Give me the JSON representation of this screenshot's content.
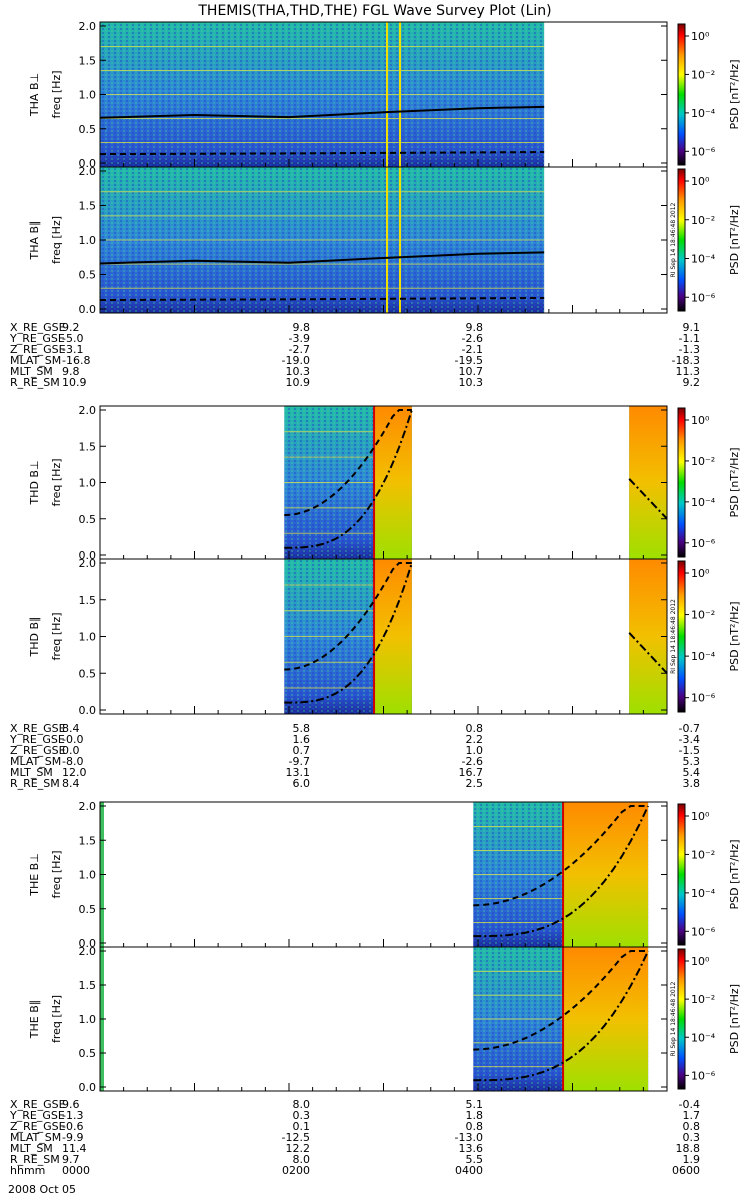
{
  "title": "THEMIS(THA,THD,THE) FGL Wave Survey Plot (Lin)",
  "colors": {
    "grid_line": "#000000",
    "cb_top": "#ff0000",
    "cb_mid": "#00dd00",
    "cb_low": "#0000ff",
    "cb_bottom": "#000000"
  },
  "chart_data": [
    {
      "type": "heatmap",
      "probe": "THA",
      "panels": [
        {
          "ylabel": "THA B⊥",
          "yunit": "freq [Hz]",
          "yticks": [
            "0.0",
            "0.5",
            "1.0",
            "1.5",
            "2.0"
          ],
          "ylim": [
            0,
            2
          ]
        },
        {
          "ylabel": "THA B∥",
          "yunit": "freq [Hz]",
          "yticks": [
            "0.0",
            "0.5",
            "1.0",
            "1.5",
            "2.0"
          ],
          "ylim": [
            0,
            2
          ]
        }
      ],
      "colorbar": {
        "label": "PSD [nT²/Hz]",
        "ticks": [
          "10⁰",
          "10⁻²",
          "10⁻⁴",
          "10⁻⁶"
        ]
      },
      "data_coverage_hours": [
        0,
        4.7
      ],
      "upper_curve": [
        [
          0,
          0.66
        ],
        [
          1,
          0.7
        ],
        [
          2,
          0.67
        ],
        [
          3,
          0.74
        ],
        [
          4,
          0.8
        ],
        [
          4.7,
          0.82
        ]
      ],
      "lower_curve": [
        [
          0,
          0.13
        ],
        [
          2,
          0.14
        ],
        [
          4.7,
          0.16
        ]
      ],
      "ephemeris": [
        {
          "label": "X_RE_GSE",
          "values": [
            "9.2",
            "9.8",
            "9.8",
            "9.1"
          ]
        },
        {
          "label": "Y_RE_GSE",
          "values": [
            "-5.0",
            "-3.9",
            "-2.6",
            "-1.1"
          ]
        },
        {
          "label": "Z_RE_GSE",
          "values": [
            "-3.1",
            "-2.7",
            "-2.1",
            "-1.3"
          ]
        },
        {
          "label": "MLAT_SM",
          "values": [
            "-16.8",
            "-19.0",
            "-19.5",
            "-18.3"
          ]
        },
        {
          "label": "MLT_SM",
          "values": [
            "9.8",
            "10.3",
            "10.7",
            "11.3"
          ]
        },
        {
          "label": "R_RE_SM",
          "values": [
            "10.9",
            "10.9",
            "10.3",
            "9.2"
          ]
        }
      ]
    },
    {
      "type": "heatmap",
      "probe": "THD",
      "panels": [
        {
          "ylabel": "THD B⊥",
          "yunit": "freq [Hz]",
          "yticks": [
            "0.0",
            "0.5",
            "1.0",
            "1.5",
            "2.0"
          ],
          "ylim": [
            0,
            2
          ]
        },
        {
          "ylabel": "THD B∥",
          "yunit": "freq [Hz]",
          "yticks": [
            "0.0",
            "0.5",
            "1.0",
            "1.5",
            "2.0"
          ],
          "ylim": [
            0,
            2
          ]
        }
      ],
      "colorbar": {
        "label": "PSD [nT²/Hz]",
        "ticks": [
          "10⁰",
          "10⁻²",
          "10⁻⁴",
          "10⁻⁶"
        ]
      },
      "data_coverage_hours": [
        [
          1.95,
          3.3
        ],
        [
          5.6,
          6.0
        ]
      ],
      "ephemeris": [
        {
          "label": "X_RE_GSE",
          "values": [
            "8.4",
            "5.8",
            "0.8",
            "-0.7"
          ]
        },
        {
          "label": "Y_RE_GSE",
          "values": [
            "-0.0",
            "1.6",
            "2.2",
            "-3.4"
          ]
        },
        {
          "label": "Z_RE_GSE",
          "values": [
            "0.0",
            "0.7",
            "1.0",
            "-1.5"
          ]
        },
        {
          "label": "MLAT_SM",
          "values": [
            "-8.0",
            "-9.7",
            "-2.6",
            "5.3"
          ]
        },
        {
          "label": "MLT_SM",
          "values": [
            "12.0",
            "13.1",
            "16.7",
            "5.4"
          ]
        },
        {
          "label": "R_RE_SM",
          "values": [
            "8.4",
            "6.0",
            "2.5",
            "3.8"
          ]
        }
      ]
    },
    {
      "type": "heatmap",
      "probe": "THE",
      "panels": [
        {
          "ylabel": "THE B⊥",
          "yunit": "freq [Hz]",
          "yticks": [
            "0.0",
            "0.5",
            "1.0",
            "1.5",
            "2.0"
          ],
          "ylim": [
            0,
            2
          ]
        },
        {
          "ylabel": "THE B∥",
          "yunit": "freq [Hz]",
          "yticks": [
            "0.0",
            "0.5",
            "1.0",
            "1.5",
            "2.0"
          ],
          "ylim": [
            0,
            2
          ]
        }
      ],
      "colorbar": {
        "label": "PSD [nT²/Hz]",
        "ticks": [
          "10⁰",
          "10⁻²",
          "10⁻⁴",
          "10⁻⁶"
        ]
      },
      "data_coverage_hours": [
        [
          0,
          0.03
        ],
        [
          3.95,
          5.8
        ]
      ],
      "ephemeris": [
        {
          "label": "X_RE_GSE",
          "values": [
            "9.6",
            "8.0",
            "5.1",
            "-0.4"
          ]
        },
        {
          "label": "Y_RE_GSE",
          "values": [
            "-1.3",
            "0.3",
            "1.8",
            "1.7"
          ]
        },
        {
          "label": "Z_RE_GSE",
          "values": [
            "-0.6",
            "0.1",
            "0.8",
            "0.8"
          ]
        },
        {
          "label": "MLAT_SM",
          "values": [
            "-9.9",
            "-12.5",
            "-13.0",
            "0.3"
          ]
        },
        {
          "label": "MLT_SM",
          "values": [
            "11.4",
            "12.2",
            "13.6",
            "18.8"
          ]
        },
        {
          "label": "R_RE_SM",
          "values": [
            "9.7",
            "8.0",
            "5.5",
            "1.9"
          ]
        },
        {
          "label": "hhmm",
          "values": [
            "0000",
            "0200",
            "0400",
            "0600"
          ]
        }
      ]
    }
  ],
  "footer_date": "2008 Oct 05",
  "stamp": "RI Sep 14 18:46:48 2012"
}
